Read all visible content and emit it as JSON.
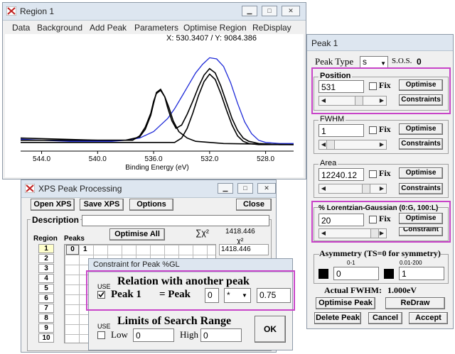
{
  "region_window": {
    "title": "Region 1",
    "menu": [
      "Data",
      "Background",
      "Add Peak",
      "Parameters",
      "Optimise Region",
      "ReDisplay"
    ],
    "coords": "X: 530.3407 / Y: 9084.386",
    "xlabel": "Binding Energy (eV)",
    "ticks": [
      "544.0",
      "540.0",
      "536.0",
      "532.0",
      "528.0"
    ]
  },
  "chart_data": {
    "type": "line",
    "xlabel": "Binding Energy (eV)",
    "x_reversed": true,
    "xlim": [
      545.5,
      526.0
    ],
    "ylim": [
      0,
      100
    ],
    "ticks": [
      544.0,
      540.0,
      536.0,
      532.0,
      528.0
    ],
    "series": [
      {
        "color": "#1e2ad8",
        "x": [
          545.5,
          544,
          542,
          540,
          539,
          538,
          537,
          536,
          535.5,
          535,
          534.5,
          534,
          533.5,
          533,
          532.5,
          532,
          531.5,
          531,
          530.5,
          530,
          529.5,
          529,
          528.5,
          528,
          527,
          526
        ],
        "y": [
          11,
          10,
          9,
          9,
          9,
          10,
          12,
          18,
          24,
          30,
          39,
          50,
          61,
          72,
          80,
          86,
          85,
          78,
          63,
          44,
          27,
          16,
          10,
          8,
          7,
          7
        ]
      },
      {
        "color": "#000000",
        "x": [
          545.5,
          540,
          538,
          537,
          536.6,
          536.2,
          536,
          535.8,
          535.5,
          535.2,
          535,
          534.7,
          534.4,
          534,
          533.6,
          533.2,
          532.8,
          532.4,
          532,
          531.6,
          531.2,
          530.8,
          530.4,
          530,
          529.6,
          529.2,
          528.5,
          527,
          526
        ],
        "y": [
          12,
          10,
          10,
          13,
          20,
          33,
          44,
          54,
          57,
          50,
          40,
          28,
          21,
          24,
          34,
          46,
          59,
          70,
          76,
          72,
          60,
          45,
          30,
          19,
          12,
          9,
          7,
          6,
          6
        ]
      },
      {
        "color": "#000000",
        "x": [
          545.5,
          537.5,
          537,
          536.6,
          536.2,
          536,
          535.8,
          535.5,
          535.2,
          534.9,
          534.6,
          534.2,
          533.6,
          533,
          531,
          526
        ],
        "y": [
          10,
          10,
          14,
          22,
          35,
          46,
          53,
          56,
          50,
          40,
          28,
          18,
          12,
          9,
          7,
          6
        ]
      },
      {
        "color": "#000000",
        "x": [
          545.5,
          534.5,
          534,
          533.6,
          533.2,
          532.8,
          532.4,
          532,
          531.6,
          531.2,
          530.8,
          530.4,
          530,
          529.6,
          529.2,
          528.5,
          526
        ],
        "y": [
          8,
          8,
          12,
          21,
          35,
          51,
          64,
          71,
          66,
          53,
          38,
          24,
          14,
          9,
          7,
          6,
          6
        ]
      }
    ]
  },
  "xps_window": {
    "title": "XPS Peak Processing",
    "open_label": "Open XPS",
    "save_label": "Save XPS",
    "options_label": "Options",
    "close_label": "Close",
    "description_label": "Description",
    "region_col": "Region",
    "peaks_col": "Peaks",
    "optimise_all_label": "Optimise All",
    "chi_label": "∑χ²",
    "chi_total": "1418.446",
    "chi_col": "χ²",
    "chi_row1": "1418.446",
    "peak_nums": [
      "0",
      "1"
    ],
    "regions": [
      "1",
      "2",
      "3",
      "4",
      "5",
      "6",
      "7",
      "8",
      "9",
      "10"
    ]
  },
  "constraint_window": {
    "title": "Constraint for Peak %GL",
    "relation_title": "Relation with another peak",
    "peak_label": "Peak 1",
    "equals_label": "= Peak",
    "peak_value": "0",
    "operator": "*",
    "factor": "0.75",
    "limits_title": "Limits of Search Range",
    "use_label": "USE",
    "low_label": "Low",
    "low_value": "0",
    "high_label": "High",
    "high_value": "0",
    "ok_label": "OK"
  },
  "peak_window": {
    "title": "Peak 1",
    "peak_type_label": "Peak Type",
    "peak_type_value": "s",
    "sos_label": "S.O.S.",
    "sos_value": "0",
    "position_label": "Position",
    "position_value": "531",
    "fwhm_label": "FWHM",
    "fwhm_value": "1",
    "area_label": "Area",
    "area_value": "12240.12",
    "lg_label": "% Lorentzian-Gaussian (0:G, 100:L)",
    "lg_value": "20",
    "fix_label": "Fix",
    "optimise_label": "Optimise",
    "constraints_label": "Constraints",
    "constraint_cut_label": "Constraint",
    "asym_label": "Asymmetry (TS=0 for symmetry)",
    "asym_range1": "0-1",
    "asym_range2": "0.01-200",
    "asym_value1": "0",
    "asym_value2": "1",
    "actual_fwhm_label": "Actual FWHM:",
    "actual_fwhm_value": "1.000eV",
    "optimise_peak_label": "Optimise Peak",
    "redraw_label": "ReDraw",
    "delete_peak_label": "Delete Peak",
    "cancel_label": "Cancel",
    "accept_label": "Accept"
  }
}
